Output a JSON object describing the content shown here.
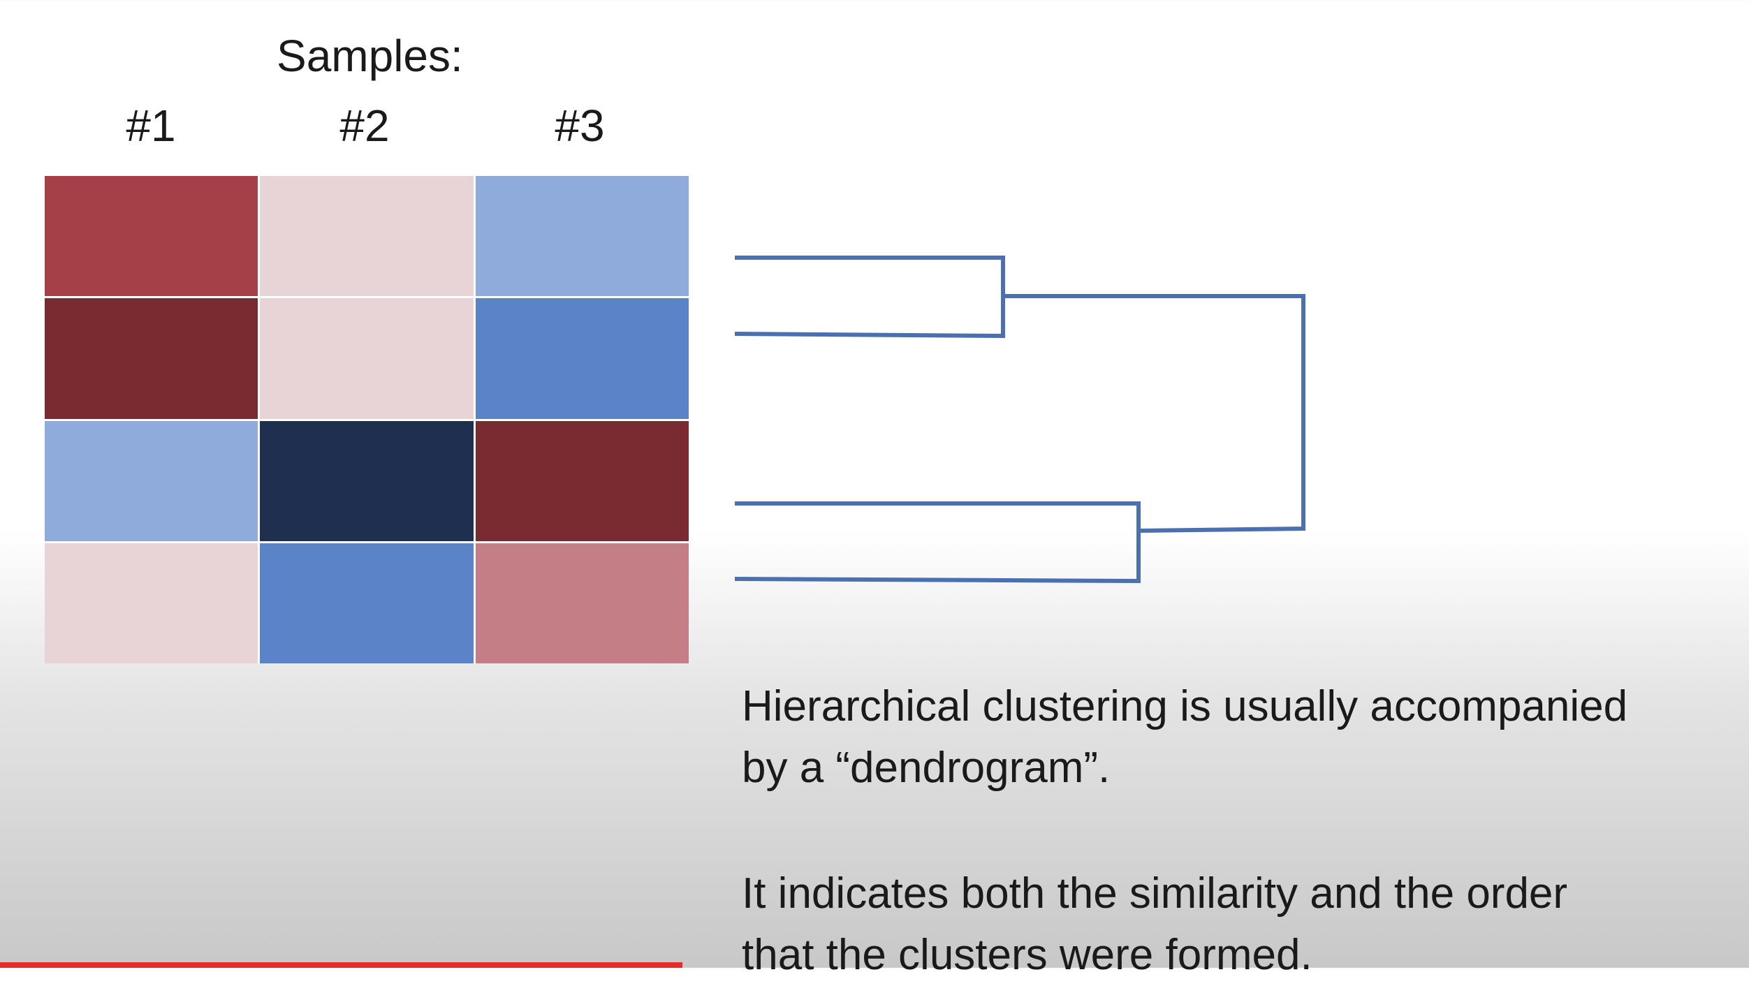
{
  "heading": "Samples:",
  "columns": [
    "#1",
    "#2",
    "#3"
  ],
  "heatmap": {
    "rows": [
      [
        "#a34146",
        "#e8d4d6",
        "#8fabdb"
      ],
      [
        "#7a2b31",
        "#e8d4d6",
        "#5a83c8"
      ],
      [
        "#8fabdb",
        "#1f2f4f",
        "#7a2b31"
      ],
      [
        "#e8d4d6",
        "#5a83c8",
        "#c47f86"
      ]
    ]
  },
  "dendrogram": {
    "color": "#4a70b0",
    "merges": [
      {
        "leaves": [
          1,
          2
        ],
        "height": 1
      },
      {
        "leaves": [
          3,
          4
        ],
        "height": 1.5
      },
      {
        "leaves": [
          "1-2",
          "3-4"
        ],
        "height": 2.5
      }
    ]
  },
  "caption": {
    "line1": "Hierarchical clustering is usually accompanied",
    "line2": "by a “dendrogram”.",
    "line3": "It indicates both the similarity and the order",
    "line4": "that the clusters were formed."
  },
  "video": {
    "progress": 0.39,
    "progress_color": "#e52d27"
  }
}
